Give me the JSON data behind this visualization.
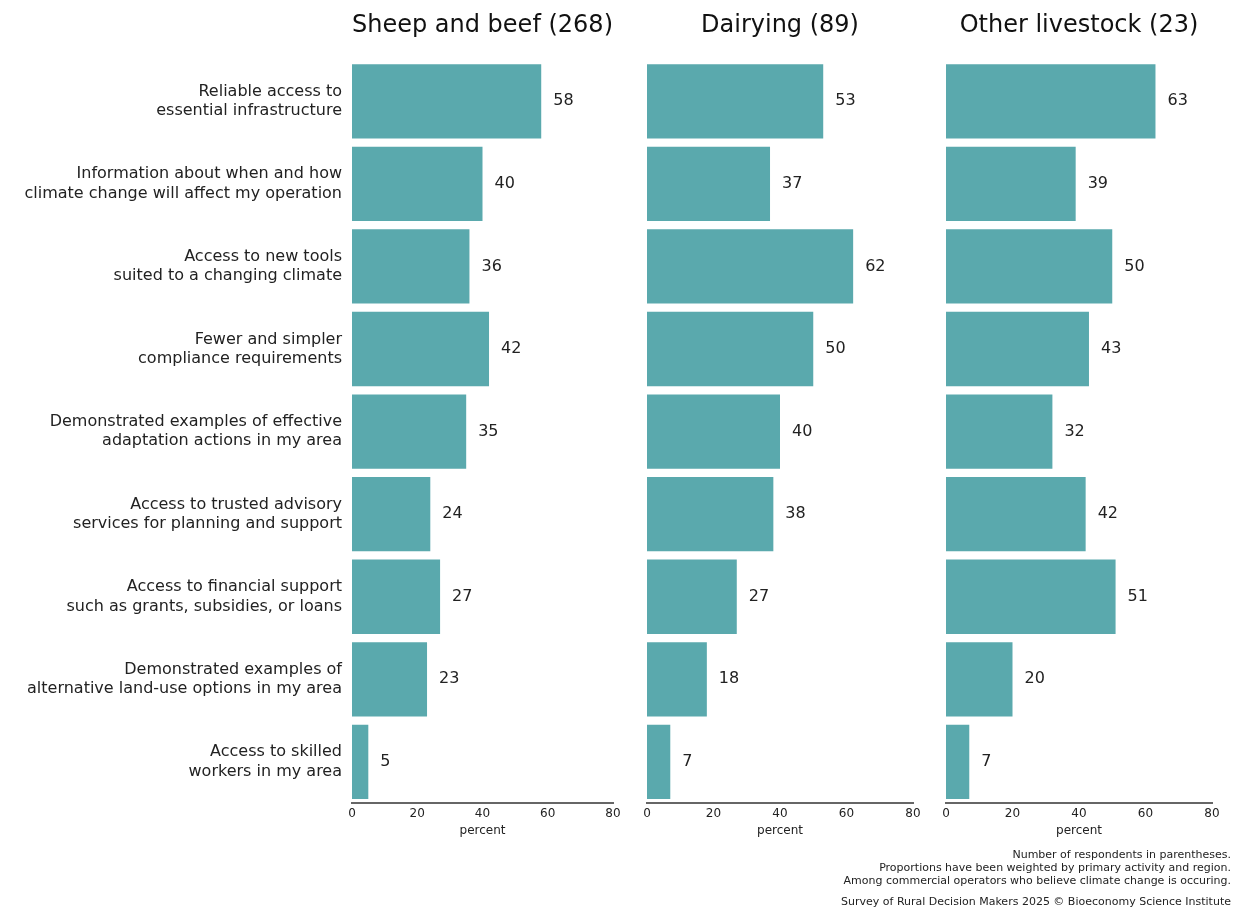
{
  "chart_data": [
    {
      "type": "bar",
      "orientation": "horizontal",
      "title": "Sheep and beef (268)",
      "xlabel": "percent",
      "categories": [
        "Reliable access to\nessential infrastructure",
        "Information about when and how\nclimate change will affect my operation",
        "Access to new tools\nsuited to a changing climate",
        "Fewer and simpler\ncompliance requirements",
        "Demonstrated examples of effective\nadaptation actions in my area",
        "Access to trusted advisory\nservices for planning and support",
        "Access to financial support\nsuch as grants, subsidies, or loans",
        "Demonstrated examples of\nalternative land-use options in my area",
        "Access to skilled\nworkers in my area"
      ],
      "values": [
        58,
        40,
        36,
        42,
        35,
        24,
        27,
        23,
        5
      ],
      "color": "#5aa9ad",
      "xlim": [
        0,
        80
      ],
      "xticks": [
        0,
        20,
        40,
        60,
        80
      ],
      "data_labels": true,
      "grid": false,
      "legend": false
    },
    {
      "type": "bar",
      "orientation": "horizontal",
      "title": "Dairying (89)",
      "xlabel": "percent",
      "categories": [
        null,
        null,
        null,
        null,
        null,
        null,
        null,
        null,
        null
      ],
      "values": [
        53,
        37,
        62,
        50,
        40,
        38,
        27,
        18,
        7
      ],
      "color": "#5aa9ad",
      "xlim": [
        0,
        80
      ],
      "xticks": [
        0,
        20,
        40,
        60,
        80
      ],
      "data_labels": true,
      "grid": false,
      "legend": false,
      "tick_labels": "x"
    },
    {
      "type": "bar",
      "orientation": "horizontal",
      "title": "Other livestock (23)",
      "xlabel": "percent",
      "categories": [
        null,
        null,
        null,
        null,
        null,
        null,
        null,
        null,
        null
      ],
      "values": [
        63,
        39,
        50,
        43,
        32,
        42,
        51,
        20,
        7
      ],
      "color": "#5aa9ad",
      "xlim": [
        0,
        80
      ],
      "xticks": [
        0,
        20,
        40,
        60,
        80
      ],
      "data_labels": true,
      "grid": false,
      "legend": false,
      "tick_labels": "x",
      "annotations": [
        "Number of respondents in parentheses.",
        "Proportions have been weighted by primary activity and region.",
        "Among commercial operators who believe climate change is occuring.",
        "Survey of Rural Decision Makers 2025 © Bioeconomy Science Institute"
      ]
    }
  ]
}
